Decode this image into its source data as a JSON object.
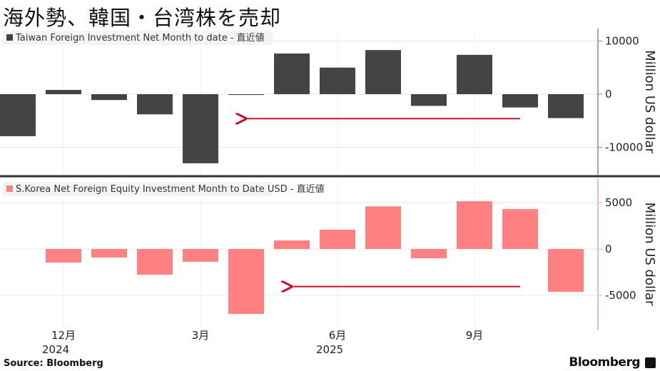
{
  "title": "海外勢、韓国・台湾株を売却",
  "source": "Source: Bloomberg",
  "brand": "Bloomberg",
  "colors": {
    "taiwan": "#444444",
    "korea": "#ff8080",
    "arrow": "#c8102e",
    "grid": "#e8e8e8"
  },
  "chart_data": [
    {
      "type": "bar",
      "title": "Taiwan Foreign Investment Net Month to date - 直近値",
      "legend": "Taiwan Foreign Investment Net Month to date - 直近値",
      "ylabel": "Million US dollar",
      "ylim": [
        -15000,
        12000
      ],
      "yticks": [
        10000,
        0,
        -10000
      ],
      "ytick_labels": [
        "10000",
        "0",
        "-10000"
      ],
      "categories": [
        "2024-11",
        "2024-12",
        "2025-01",
        "2025-02",
        "2025-03",
        "2025-04",
        "2025-05",
        "2025-06",
        "2025-07",
        "2025-08",
        "2025-09",
        "2025-10",
        "2025-11"
      ],
      "values": [
        -7900,
        800,
        -1100,
        -3800,
        -13000,
        -150,
        7650,
        5000,
        8300,
        -2200,
        7400,
        -2500,
        -4500
      ],
      "annotation": {
        "type": "arrow",
        "from": "2025-10",
        "to": "2025-04",
        "y": -4600
      }
    },
    {
      "type": "bar",
      "title": "S.Korea Net Foreign Equity Investment Month to Date USD - 直近値",
      "legend": "S.Korea Net Foreign Equity Investment Month to Date USD - 直近値",
      "ylabel": "Million US dollar",
      "ylim": [
        -8500,
        7500
      ],
      "yticks": [
        5000,
        0,
        -5000
      ],
      "ytick_labels": [
        "5000",
        "0",
        "-5000"
      ],
      "categories": [
        "2024-11",
        "2024-12",
        "2025-01",
        "2025-02",
        "2025-03",
        "2025-04",
        "2025-05",
        "2025-06",
        "2025-07",
        "2025-08",
        "2025-09",
        "2025-10",
        "2025-11"
      ],
      "values": [
        0,
        -1460,
        -920,
        -2770,
        -1380,
        -7000,
        920,
        2080,
        4600,
        -1000,
        5150,
        4300,
        -4620
      ],
      "annotation": {
        "type": "arrow",
        "from": "2025-10",
        "to": "2025-05",
        "y": -4050
      }
    }
  ],
  "xaxis": {
    "ticks": [
      {
        "index": 1,
        "label": "12月",
        "year": "2024"
      },
      {
        "index": 4,
        "label": "3月",
        "year": ""
      },
      {
        "index": 7,
        "label": "6月",
        "year": "2025"
      },
      {
        "index": 10,
        "label": "9月",
        "year": ""
      }
    ]
  }
}
